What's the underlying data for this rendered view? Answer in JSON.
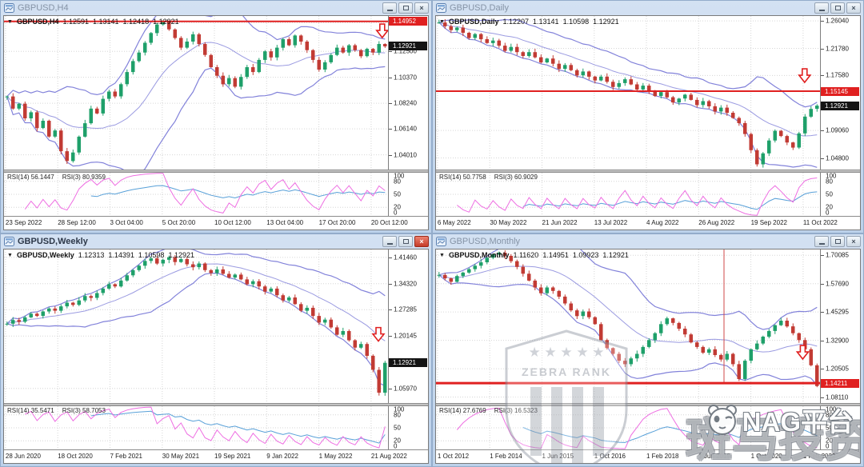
{
  "icons": {
    "collapse": "▼",
    "close_glyph": "×"
  },
  "colors": {
    "candle_up": "#1fa06a",
    "candle_down": "#c23b34",
    "bollinger": "#8282da",
    "rsi_fast": "#ee6ee2",
    "rsi_slow": "#58a0d8",
    "alert_line": "#e02020",
    "tag_black": "#141414",
    "titlebar": "#c8daf0"
  },
  "window_controls": [
    "minimize",
    "restore",
    "close"
  ],
  "watermark": {
    "shield_stars": "★ ★ ★ ★ ★",
    "shield_title": "ZEBRA RANK",
    "big_text": "斑马投资",
    "brand_text": "NAG平台"
  },
  "rsi_scale_labels": [
    "100",
    "80",
    "50",
    "20",
    "0"
  ],
  "panels": [
    {
      "title": "GBPUSD,H4",
      "active": false,
      "legend": {
        "name": "GBPUSD,H4",
        "open": "1.12591",
        "high": "1.13141",
        "low": "1.12418",
        "close": "1.12921"
      },
      "rsi14_label": "RSI(14) 56.1447",
      "rsi3_label": "RSI(3) 80.9359"
    },
    {
      "title": "GBPUSD,Daily",
      "active": false,
      "legend": {
        "name": "GBPUSD,Daily",
        "open": "1.12207",
        "high": "1.13141",
        "low": "1.10598",
        "close": "1.12921"
      },
      "rsi14_label": "RSI(14) 50.7758",
      "rsi3_label": "RSI(3) 60.9029"
    },
    {
      "title": "GBPUSD,Weekly",
      "active": true,
      "legend": {
        "name": "GBPUSD,Weekly",
        "open": "1.12313",
        "high": "1.14391",
        "low": "1.10598",
        "close": "1.12921"
      },
      "rsi14_label": "RSI(14) 35.5471",
      "rsi3_label": "RSI(3) 58.7053"
    },
    {
      "title": "GBPUSD,Monthly",
      "active": false,
      "legend": {
        "name": "GBPUSD,Monthly",
        "open": "1.11620",
        "high": "1.14951",
        "low": "1.09923",
        "close": "1.12921"
      },
      "rsi14_label": "RSI(14) 27.6769",
      "rsi3_label": "RSI(3) 16.5323"
    }
  ],
  "chart_data": [
    {
      "type": "candlestick",
      "timeframe": "H4",
      "symbol": "GBPUSD",
      "x_labels": [
        "23 Sep 2022",
        "28 Sep 12:00",
        "3 Oct 04:00",
        "5 Oct 20:00",
        "10 Oct 12:00",
        "13 Oct 04:00",
        "17 Oct 20:00",
        "20 Oct 12:00"
      ],
      "y_ticks": [
        {
          "v": 1.1485,
          "label": "1.14850"
        },
        {
          "v": 1.125,
          "label": "1.12500"
        },
        {
          "v": 1.1037,
          "label": "1.10370"
        },
        {
          "v": 1.0824,
          "label": "1.08240"
        },
        {
          "v": 1.0614,
          "label": "1.06140"
        },
        {
          "v": 1.0401,
          "label": "1.04010"
        }
      ],
      "scale": {
        "min": 1.028,
        "max": 1.154
      },
      "rsi_periods": [
        14,
        3
      ],
      "price_line": {
        "value": 1.14952,
        "label": "1.14952",
        "thick": false
      },
      "price_tag": {
        "value": 1.12921,
        "label": "1.12921"
      },
      "arrow": {
        "fx": 0.985,
        "value": 1.1415
      },
      "closes": [
        1.088,
        1.078,
        1.082,
        1.07,
        1.075,
        1.062,
        1.068,
        1.055,
        1.06,
        1.043,
        1.035,
        1.042,
        1.055,
        1.066,
        1.078,
        1.074,
        1.086,
        1.092,
        1.088,
        1.098,
        1.108,
        1.117,
        1.124,
        1.132,
        1.14,
        1.147,
        1.149,
        1.143,
        1.136,
        1.128,
        1.133,
        1.139,
        1.131,
        1.122,
        1.112,
        1.105,
        1.098,
        1.103,
        1.096,
        1.104,
        1.112,
        1.108,
        1.118,
        1.125,
        1.12,
        1.128,
        1.135,
        1.13,
        1.138,
        1.133,
        1.126,
        1.118,
        1.11,
        1.116,
        1.122,
        1.128,
        1.124,
        1.13,
        1.126,
        1.121,
        1.127,
        1.124,
        1.131,
        1.129
      ]
    },
    {
      "type": "candlestick",
      "timeframe": "Daily",
      "symbol": "GBPUSD",
      "x_labels": [
        "6 May 2022",
        "30 May 2022",
        "21 Jun 2022",
        "13 Jul 2022",
        "4 Aug 2022",
        "26 Aug 2022",
        "19 Sep 2022",
        "11 Oct 2022"
      ],
      "y_ticks": [
        {
          "v": 1.2604,
          "label": "1.26040"
        },
        {
          "v": 1.2178,
          "label": "1.21780"
        },
        {
          "v": 1.1758,
          "label": "1.17580"
        },
        {
          "v": 1.0906,
          "label": "1.09060"
        },
        {
          "v": 1.048,
          "label": "1.04800"
        }
      ],
      "scale": {
        "min": 1.03,
        "max": 1.268
      },
      "rsi_periods": [
        14,
        3
      ],
      "price_line": {
        "value": 1.15145,
        "label": "1.15145",
        "thick": false
      },
      "price_tag": {
        "value": 1.12921,
        "label": "1.12921"
      },
      "arrow": {
        "fx": 0.96,
        "value": 1.175
      },
      "closes": [
        1.258,
        1.252,
        1.246,
        1.25,
        1.242,
        1.234,
        1.24,
        1.232,
        1.226,
        1.23,
        1.222,
        1.214,
        1.22,
        1.212,
        1.206,
        1.212,
        1.204,
        1.196,
        1.202,
        1.194,
        1.186,
        1.192,
        1.184,
        1.176,
        1.182,
        1.174,
        1.168,
        1.174,
        1.166,
        1.158,
        1.164,
        1.17,
        1.162,
        1.154,
        1.16,
        1.152,
        1.144,
        1.15,
        1.142,
        1.134,
        1.14,
        1.146,
        1.138,
        1.13,
        1.136,
        1.128,
        1.12,
        1.126,
        1.118,
        1.11,
        1.102,
        1.085,
        1.06,
        1.038,
        1.055,
        1.075,
        1.09,
        1.082,
        1.072,
        1.064,
        1.086,
        1.112,
        1.124,
        1.129
      ]
    },
    {
      "type": "candlestick",
      "timeframe": "Weekly",
      "symbol": "GBPUSD",
      "x_labels": [
        "28 Jun 2020",
        "18 Oct 2020",
        "7 Feb 2021",
        "30 May 2021",
        "19 Sep 2021",
        "9 Jan 2022",
        "1 May 2022",
        "21 Aug 2022"
      ],
      "y_ticks": [
        {
          "v": 1.4146,
          "label": "1.41460"
        },
        {
          "v": 1.3432,
          "label": "1.34320"
        },
        {
          "v": 1.27285,
          "label": "1.27285"
        },
        {
          "v": 1.20145,
          "label": "1.20145"
        },
        {
          "v": 1.0597,
          "label": "1.05970"
        }
      ],
      "scale": {
        "min": 1.02,
        "max": 1.436
      },
      "rsi_periods": [
        14,
        3
      ],
      "price_line": null,
      "price_tag": {
        "value": 1.12921,
        "label": "1.12921"
      },
      "arrow": {
        "fx": 0.975,
        "value": 1.205
      },
      "closes": [
        1.235,
        1.245,
        1.24,
        1.252,
        1.262,
        1.256,
        1.268,
        1.276,
        1.27,
        1.282,
        1.292,
        1.286,
        1.298,
        1.31,
        1.305,
        1.318,
        1.33,
        1.342,
        1.336,
        1.352,
        1.366,
        1.38,
        1.392,
        1.405,
        1.412,
        1.398,
        1.408,
        1.415,
        1.402,
        1.41,
        1.396,
        1.388,
        1.398,
        1.38,
        1.372,
        1.382,
        1.37,
        1.36,
        1.368,
        1.355,
        1.342,
        1.35,
        1.336,
        1.322,
        1.33,
        1.312,
        1.298,
        1.306,
        1.288,
        1.27,
        1.278,
        1.256,
        1.238,
        1.246,
        1.225,
        1.205,
        1.215,
        1.19,
        1.17,
        1.18,
        1.148,
        1.11,
        1.048,
        1.129
      ]
    },
    {
      "type": "candlestick",
      "timeframe": "Monthly",
      "symbol": "GBPUSD",
      "x_labels": [
        "1 Oct 2012",
        "1 Feb 2014",
        "1 Jun 2015",
        "1 Oct 2016",
        "1 Feb 2018",
        "1 Jun 2019",
        "1 Oct 2020",
        "1 Feb 2022"
      ],
      "y_ticks": [
        {
          "v": 1.70085,
          "label": "1.70085"
        },
        {
          "v": 1.5769,
          "label": "1.57690"
        },
        {
          "v": 1.45295,
          "label": "1.45295"
        },
        {
          "v": 1.329,
          "label": "1.32900"
        },
        {
          "v": 1.20505,
          "label": "1.20505"
        },
        {
          "v": 1.0811,
          "label": "1.08110"
        }
      ],
      "scale": {
        "min": 1.055,
        "max": 1.726
      },
      "rsi_periods": [
        14,
        3
      ],
      "price_line": {
        "value": 1.14211,
        "label": "1.14211",
        "thick": true
      },
      "price_tag": null,
      "arrow": {
        "fx": 0.955,
        "value": 1.275
      },
      "vline_fx": 0.75,
      "closes": [
        1.615,
        1.6,
        1.585,
        1.61,
        1.625,
        1.64,
        1.655,
        1.67,
        1.69,
        1.705,
        1.712,
        1.698,
        1.675,
        1.65,
        1.62,
        1.59,
        1.56,
        1.535,
        1.56,
        1.545,
        1.52,
        1.49,
        1.46,
        1.435,
        1.455,
        1.43,
        1.4,
        1.33,
        1.295,
        1.27,
        1.24,
        1.225,
        1.25,
        1.27,
        1.3,
        1.33,
        1.36,
        1.4,
        1.425,
        1.405,
        1.38,
        1.355,
        1.32,
        1.3,
        1.275,
        1.29,
        1.265,
        1.245,
        1.27,
        1.225,
        1.16,
        1.24,
        1.29,
        1.315,
        1.345,
        1.37,
        1.395,
        1.415,
        1.39,
        1.36,
        1.33,
        1.29,
        1.22,
        1.129
      ]
    }
  ]
}
